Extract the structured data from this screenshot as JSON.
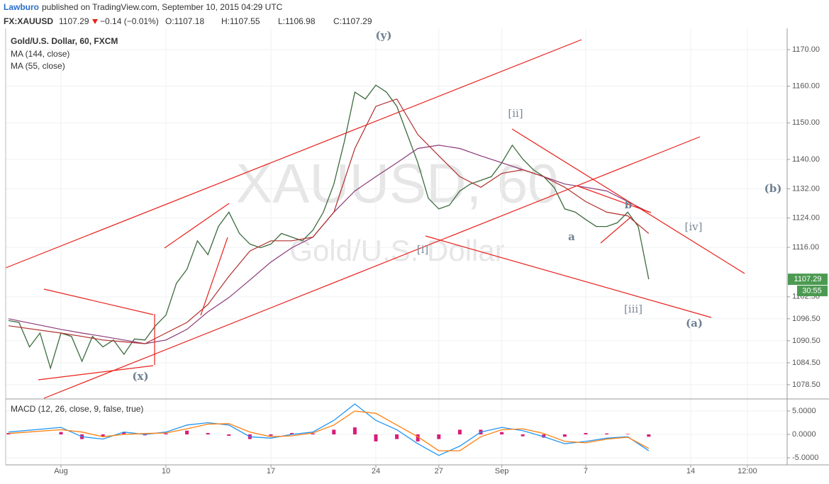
{
  "header": {
    "author": "Lawburo",
    "published": "published on TradingView.com, September 10, 2015 04:29 UTC",
    "symbol": "FX:XAUUSD",
    "price": "1107.29",
    "change": "−0.14 (−0.01%)",
    "open": "O:1107.18",
    "high": "H:1107.55",
    "low": "L:1106.98",
    "close": "C:1107.29"
  },
  "chart_data": [
    {
      "type": "line",
      "title": "Gold/U.S. Dollar, 60, FXCM",
      "watermark": "XAUUSD, 60",
      "watermark_sub": "Gold/U.S. Dollar",
      "x": [
        -2.5,
        -2,
        -1.5,
        -1,
        -0.5,
        0,
        0.5,
        1,
        1.5,
        2,
        2.5,
        3,
        3.5,
        4,
        4.5,
        5,
        5.5,
        6,
        6.5,
        7,
        7.5,
        8,
        8.5,
        9,
        9.5,
        10,
        10.5,
        11,
        11.5,
        12,
        12.5,
        13,
        13.5,
        14,
        14.5,
        15,
        15.5,
        16,
        16.5,
        17,
        17.5,
        18,
        18.5,
        19,
        19.5,
        20,
        20.5,
        21,
        21.5,
        22,
        22.5,
        23,
        23.5,
        24,
        24.5,
        25,
        25.5,
        26,
        26.5,
        27,
        27.5,
        28
      ],
      "values": [
        1096,
        1095.5,
        1088.8,
        1092.6,
        1083,
        1092.6,
        1091.7,
        1084.9,
        1091.7,
        1088.8,
        1090.7,
        1086.8,
        1091,
        1090.7,
        1094.6,
        1097.5,
        1106.2,
        1110,
        1117.8,
        1114,
        1121.7,
        1125.6,
        1119.8,
        1116.9,
        1115.9,
        1116.9,
        1119.8,
        1118.8,
        1117.8,
        1120.7,
        1125.6,
        1133.3,
        1144.9,
        1158.4,
        1156.5,
        1160.3,
        1158.4,
        1154.5,
        1146.8,
        1139.1,
        1129.4,
        1126.5,
        1127.5,
        1131.4,
        1133.3,
        1134.3,
        1135.3,
        1139.1,
        1143.9,
        1140.1,
        1137.2,
        1135.3,
        1132.3,
        1126.5,
        1125.6,
        1123.6,
        1121.7,
        1121.7,
        1122.7,
        1125.6,
        1121.7,
        1107.3
      ],
      "color": "#3d6b3d",
      "series": [
        {
          "name": "MA (144, close)",
          "color": "#8b3a7a",
          "x": [
            -2.5,
            0,
            1,
            2,
            3,
            4,
            5,
            6,
            7,
            8,
            9,
            10,
            11,
            12,
            13,
            14,
            15,
            16,
            17,
            18,
            19,
            20,
            21,
            22,
            23,
            24,
            25,
            26,
            27,
            28
          ],
          "values": [
            1096.5,
            1093.6,
            1092.6,
            1091.7,
            1090.7,
            1089.7,
            1090.7,
            1093.6,
            1098.4,
            1102.3,
            1107.1,
            1112,
            1115.9,
            1118.8,
            1125.6,
            1131.4,
            1135.3,
            1139.1,
            1143,
            1143.9,
            1143,
            1141,
            1139.1,
            1137.2,
            1135.3,
            1133.3,
            1132.4,
            1131.4,
            1128.5,
            1125.6
          ]
        },
        {
          "name": "MA (55, close)",
          "color": "#b0302e",
          "x": [
            -2.5,
            0,
            1,
            2,
            3,
            4,
            5,
            6,
            7,
            8,
            9,
            10,
            11,
            12,
            13,
            14,
            15,
            16,
            17,
            18,
            19,
            20,
            21,
            22,
            23,
            24,
            25,
            26,
            27,
            28
          ],
          "values": [
            1094.6,
            1092.6,
            1091.7,
            1090.7,
            1090.2,
            1089.7,
            1092.6,
            1095.5,
            1100.4,
            1108.1,
            1115,
            1117.8,
            1117.8,
            1118.8,
            1125.6,
            1143,
            1154.5,
            1156.5,
            1146.8,
            1141,
            1135.3,
            1132.4,
            1136.2,
            1137.2,
            1135.3,
            1132.4,
            1128.5,
            1125.6,
            1124.6,
            1119.8
          ]
        }
      ],
      "xlim": [
        -2.635,
        34.595
      ],
      "ylim": [
        1074.8,
        1175.8
      ],
      "yticks": [
        {
          "value": 1078.5,
          "label": "1078.50"
        },
        {
          "value": 1084.5,
          "label": "1084.50"
        },
        {
          "value": 1090.5,
          "label": "1090.50"
        },
        {
          "value": 1096.5,
          "label": "1096.50"
        },
        {
          "value": 1102.5,
          "label": "1102.50"
        },
        {
          "value": 1116,
          "label": "1116.00"
        },
        {
          "value": 1124,
          "label": "1124.00"
        },
        {
          "value": 1132,
          "label": "1132.00"
        },
        {
          "value": 1140,
          "label": "1140.00"
        },
        {
          "value": 1150,
          "label": "1150.00"
        },
        {
          "value": 1160,
          "label": "1160.00"
        },
        {
          "value": 1170,
          "label": "1170.00"
        }
      ],
      "grid": true,
      "last_price": 1107.29,
      "countdown": "30:55",
      "annotations": [
        "(y)",
        "[ii]",
        "(b)",
        "[iv]",
        "b",
        "a",
        "[i]",
        "[iii]",
        "(a)",
        "(x)"
      ]
    },
    {
      "type": "macd",
      "title": "MACD (12, 26, close, 9, false, true)",
      "x": [
        -2.5,
        0,
        1,
        2,
        3,
        4,
        5,
        6,
        7,
        8,
        9,
        10,
        11,
        12,
        13,
        14,
        15,
        16,
        17,
        18,
        19,
        20,
        21,
        22,
        23,
        24,
        25,
        26,
        27,
        28
      ],
      "macd_line": {
        "color": "#2196f3",
        "values": [
          0.5,
          1.5,
          -0.5,
          -1.0,
          0.5,
          0.0,
          0.5,
          2.0,
          2.5,
          2.0,
          -0.5,
          -0.8,
          0.0,
          0.5,
          3.0,
          6.5,
          3.0,
          1.0,
          -2.0,
          -4.5,
          -2.5,
          0.5,
          1.5,
          0.8,
          -0.5,
          -2.0,
          -1.5,
          -0.8,
          -0.5,
          -3.5
        ]
      },
      "signal_line": {
        "color": "#ff7f0e",
        "values": [
          0.2,
          1.0,
          0.5,
          -0.5,
          0.0,
          0.2,
          0.3,
          1.2,
          2.2,
          2.3,
          0.5,
          -0.5,
          -0.3,
          0.3,
          2.0,
          5.0,
          4.5,
          2.0,
          -0.5,
          -3.5,
          -3.5,
          -0.5,
          1.0,
          1.2,
          0.2,
          -1.5,
          -1.8,
          -1.0,
          -0.6,
          -3.0
        ]
      },
      "histogram": {
        "color": "#d81b7a",
        "values": [
          0.3,
          0.5,
          -1.0,
          -0.5,
          0.5,
          -0.2,
          0.2,
          0.8,
          0.3,
          -0.3,
          -1.0,
          -0.3,
          0.3,
          0.2,
          1.0,
          1.5,
          -1.5,
          -1.0,
          -1.5,
          -1.0,
          1.0,
          1.0,
          0.5,
          -0.4,
          -0.7,
          -0.5,
          0.3,
          0.2,
          0.1,
          -0.5
        ]
      },
      "xlim": [
        -2.635,
        34.595
      ],
      "ylim": [
        -6.36,
        7.27
      ],
      "yticks": [
        {
          "value": 5,
          "label": "5.0000"
        },
        {
          "value": 0,
          "label": "0.0000"
        },
        {
          "value": -5,
          "label": "-5.0000"
        }
      ],
      "xticks": [
        {
          "value": 0,
          "label": "Aug"
        },
        {
          "value": 5,
          "label": "10"
        },
        {
          "value": 10,
          "label": "17"
        },
        {
          "value": 15,
          "label": "24"
        },
        {
          "value": 18,
          "label": "27"
        },
        {
          "value": 21,
          "label": "Sep"
        },
        {
          "value": 25,
          "label": "7"
        },
        {
          "value": 30,
          "label": "14"
        },
        {
          "value": 32.7,
          "label": "12:00"
        }
      ],
      "grid": true
    }
  ]
}
